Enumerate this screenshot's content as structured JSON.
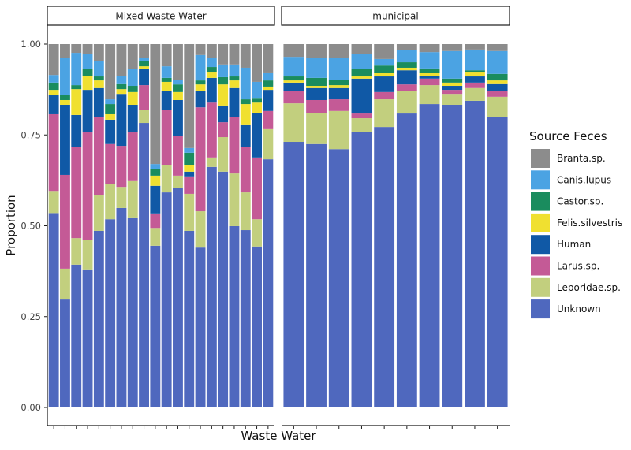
{
  "chart_data": {
    "type": "bar",
    "stacked": true,
    "xlabel": "Waste Water",
    "ylabel": "Proportion",
    "ylim": [
      0,
      1
    ],
    "yticks": [
      "0.00",
      "0.25",
      "0.50",
      "0.75",
      "1.00"
    ],
    "ytick_values": [
      0,
      0.25,
      0.5,
      0.75,
      1
    ],
    "legend": {
      "title": "Source Feces",
      "position": "right",
      "entries": [
        "Branta.sp.",
        "Canis.lupus",
        "Castor.sp.",
        "Felis.silvestris",
        "Human",
        "Larus.sp.",
        "Leporidae.sp.",
        "Unknown"
      ]
    },
    "colors": {
      "Branta.sp.": "#8c8c8c",
      "Canis.lupus": "#4ba3e3",
      "Castor.sp.": "#1a8c5e",
      "Felis.silvestris": "#f0e030",
      "Human": "#1059a6",
      "Larus.sp.": "#c45a96",
      "Leporidae.sp.": "#c2cf7e",
      "Unknown": "#4f68be"
    },
    "stack_order": [
      "Unknown",
      "Leporidae.sp.",
      "Larus.sp.",
      "Human",
      "Felis.silvestris",
      "Castor.sp.",
      "Canis.lupus",
      "Branta.sp."
    ],
    "facets": [
      {
        "label": "Mixed Waste Water",
        "bars": [
          {
            "Unknown": 0.535,
            "Leporidae.sp.": 0.061,
            "Larus.sp.": 0.211,
            "Human": 0.052,
            "Felis.silvestris": 0.015,
            "Castor.sp.": 0.02,
            "Canis.lupus": 0.021,
            "Branta.sp.": 0.085
          },
          {
            "Unknown": 0.297,
            "Leporidae.sp.": 0.085,
            "Larus.sp.": 0.258,
            "Human": 0.193,
            "Felis.silvestris": 0.013,
            "Castor.sp.": 0.013,
            "Canis.lupus": 0.102,
            "Branta.sp.": 0.039
          },
          {
            "Unknown": 0.393,
            "Leporidae.sp.": 0.073,
            "Larus.sp.": 0.252,
            "Human": 0.087,
            "Felis.silvestris": 0.071,
            "Castor.sp.": 0.011,
            "Canis.lupus": 0.089,
            "Branta.sp.": 0.024
          },
          {
            "Unknown": 0.38,
            "Leporidae.sp.": 0.082,
            "Larus.sp.": 0.295,
            "Human": 0.117,
            "Felis.silvestris": 0.039,
            "Castor.sp.": 0.018,
            "Canis.lupus": 0.041,
            "Branta.sp.": 0.028
          },
          {
            "Unknown": 0.486,
            "Leporidae.sp.": 0.098,
            "Larus.sp.": 0.216,
            "Human": 0.079,
            "Felis.silvestris": 0.021,
            "Castor.sp.": 0.011,
            "Canis.lupus": 0.043,
            "Branta.sp.": 0.046
          },
          {
            "Unknown": 0.518,
            "Leporidae.sp.": 0.096,
            "Larus.sp.": 0.111,
            "Human": 0.067,
            "Felis.silvestris": 0.015,
            "Castor.sp.": 0.028,
            "Canis.lupus": 0.013,
            "Branta.sp.": 0.152
          },
          {
            "Unknown": 0.549,
            "Leporidae.sp.": 0.058,
            "Larus.sp.": 0.113,
            "Human": 0.143,
            "Felis.silvestris": 0.013,
            "Castor.sp.": 0.016,
            "Canis.lupus": 0.021,
            "Branta.sp.": 0.087
          },
          {
            "Unknown": 0.523,
            "Leporidae.sp.": 0.1,
            "Larus.sp.": 0.134,
            "Human": 0.076,
            "Felis.silvestris": 0.035,
            "Castor.sp.": 0.017,
            "Canis.lupus": 0.046,
            "Branta.sp.": 0.069
          },
          {
            "Unknown": 0.783,
            "Leporidae.sp.": 0.035,
            "Larus.sp.": 0.069,
            "Human": 0.044,
            "Felis.silvestris": 0.008,
            "Castor.sp.": 0.015,
            "Canis.lupus": 0.007,
            "Branta.sp.": 0.039
          },
          {
            "Unknown": 0.445,
            "Leporidae.sp.": 0.049,
            "Larus.sp.": 0.04,
            "Human": 0.076,
            "Felis.silvestris": 0.028,
            "Castor.sp.": 0.019,
            "Canis.lupus": 0.013,
            "Branta.sp.": 0.33
          },
          {
            "Unknown": 0.592,
            "Leporidae.sp.": 0.074,
            "Larus.sp.": 0.152,
            "Human": 0.052,
            "Felis.silvestris": 0.026,
            "Castor.sp.": 0.011,
            "Canis.lupus": 0.032,
            "Branta.sp.": 0.061
          },
          {
            "Unknown": 0.605,
            "Leporidae.sp.": 0.033,
            "Larus.sp.": 0.11,
            "Human": 0.098,
            "Felis.silvestris": 0.022,
            "Castor.sp.": 0.021,
            "Canis.lupus": 0.013,
            "Branta.sp.": 0.098
          },
          {
            "Unknown": 0.486,
            "Leporidae.sp.": 0.102,
            "Larus.sp.": 0.048,
            "Human": 0.013,
            "Felis.silvestris": 0.019,
            "Castor.sp.": 0.033,
            "Canis.lupus": 0.013,
            "Branta.sp.": 0.286
          },
          {
            "Unknown": 0.44,
            "Leporidae.sp.": 0.1,
            "Larus.sp.": 0.286,
            "Human": 0.044,
            "Felis.silvestris": 0.019,
            "Castor.sp.": 0.011,
            "Canis.lupus": 0.07,
            "Branta.sp.": 0.03
          },
          {
            "Unknown": 0.662,
            "Leporidae.sp.": 0.026,
            "Larus.sp.": 0.151,
            "Human": 0.068,
            "Felis.silvestris": 0.017,
            "Castor.sp.": 0.013,
            "Canis.lupus": 0.024,
            "Branta.sp.": 0.039
          },
          {
            "Unknown": 0.649,
            "Leporidae.sp.": 0.095,
            "Larus.sp.": 0.041,
            "Human": 0.046,
            "Felis.silvestris": 0.058,
            "Castor.sp.": 0.02,
            "Canis.lupus": 0.035,
            "Branta.sp.": 0.056
          },
          {
            "Unknown": 0.499,
            "Leporidae.sp.": 0.145,
            "Larus.sp.": 0.156,
            "Human": 0.079,
            "Felis.silvestris": 0.021,
            "Castor.sp.": 0.011,
            "Canis.lupus": 0.033,
            "Branta.sp.": 0.056
          },
          {
            "Unknown": 0.488,
            "Leporidae.sp.": 0.104,
            "Larus.sp.": 0.124,
            "Human": 0.063,
            "Felis.silvestris": 0.056,
            "Castor.sp.": 0.013,
            "Canis.lupus": 0.087,
            "Branta.sp.": 0.065
          },
          {
            "Unknown": 0.443,
            "Leporidae.sp.": 0.075,
            "Larus.sp.": 0.17,
            "Human": 0.123,
            "Felis.silvestris": 0.028,
            "Castor.sp.": 0.013,
            "Canis.lupus": 0.044,
            "Branta.sp.": 0.104
          },
          {
            "Unknown": 0.683,
            "Leporidae.sp.": 0.083,
            "Larus.sp.": 0.05,
            "Human": 0.058,
            "Felis.silvestris": 0.009,
            "Castor.sp.": 0.017,
            "Canis.lupus": 0.022,
            "Branta.sp.": 0.078
          }
        ]
      },
      {
        "label": "municipal",
        "bars": [
          {
            "Unknown": 0.731,
            "Leporidae.sp.": 0.106,
            "Larus.sp.": 0.033,
            "Human": 0.024,
            "Felis.silvestris": 0.006,
            "Castor.sp.": 0.011,
            "Canis.lupus": 0.054,
            "Branta.sp.": 0.035
          },
          {
            "Unknown": 0.725,
            "Leporidae.sp.": 0.086,
            "Larus.sp.": 0.035,
            "Human": 0.033,
            "Felis.silvestris": 0.006,
            "Castor.sp.": 0.022,
            "Canis.lupus": 0.056,
            "Branta.sp.": 0.037
          },
          {
            "Unknown": 0.711,
            "Leporidae.sp.": 0.105,
            "Larus.sp.": 0.032,
            "Human": 0.031,
            "Felis.silvestris": 0.008,
            "Castor.sp.": 0.015,
            "Canis.lupus": 0.061,
            "Branta.sp.": 0.037
          },
          {
            "Unknown": 0.759,
            "Leporidae.sp.": 0.037,
            "Larus.sp.": 0.013,
            "Human": 0.096,
            "Felis.silvestris": 0.006,
            "Castor.sp.": 0.02,
            "Canis.lupus": 0.041,
            "Branta.sp.": 0.028
          },
          {
            "Unknown": 0.772,
            "Leporidae.sp.": 0.076,
            "Larus.sp.": 0.02,
            "Human": 0.043,
            "Felis.silvestris": 0.009,
            "Castor.sp.": 0.021,
            "Canis.lupus": 0.018,
            "Branta.sp.": 0.041
          },
          {
            "Unknown": 0.809,
            "Leporidae.sp.": 0.063,
            "Larus.sp.": 0.017,
            "Human": 0.039,
            "Felis.silvestris": 0.007,
            "Castor.sp.": 0.015,
            "Canis.lupus": 0.033,
            "Branta.sp.": 0.017
          },
          {
            "Unknown": 0.835,
            "Leporidae.sp.": 0.052,
            "Larus.sp.": 0.018,
            "Human": 0.008,
            "Felis.silvestris": 0.007,
            "Castor.sp.": 0.013,
            "Canis.lupus": 0.045,
            "Branta.sp.": 0.022
          },
          {
            "Unknown": 0.833,
            "Leporidae.sp.": 0.03,
            "Larus.sp.": 0.011,
            "Human": 0.011,
            "Felis.silvestris": 0.009,
            "Castor.sp.": 0.011,
            "Canis.lupus": 0.076,
            "Branta.sp.": 0.019
          },
          {
            "Unknown": 0.844,
            "Leporidae.sp.": 0.035,
            "Larus.sp.": 0.015,
            "Human": 0.017,
            "Felis.silvestris": 0.013,
            "Castor.sp.": 0.004,
            "Canis.lupus": 0.057,
            "Branta.sp.": 0.015
          },
          {
            "Unknown": 0.8,
            "Leporidae.sp.": 0.055,
            "Larus.sp.": 0.015,
            "Human": 0.022,
            "Felis.silvestris": 0.008,
            "Castor.sp.": 0.018,
            "Canis.lupus": 0.063,
            "Branta.sp.": 0.019
          }
        ]
      }
    ]
  }
}
